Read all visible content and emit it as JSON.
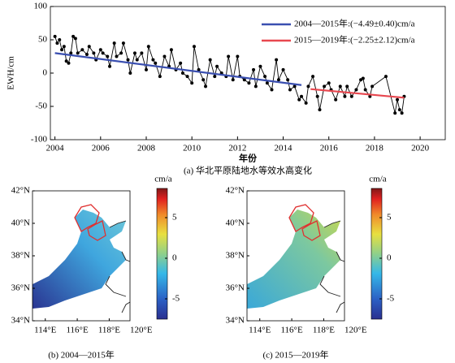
{
  "chart_data": {
    "type": "line",
    "ylabel": "EWH/cm",
    "xlabel": "年份",
    "caption": "(a) 华北平原陆地水等效水高变化",
    "xlim": [
      2003.8,
      2021.1
    ],
    "xticks": [
      2004,
      2006,
      2008,
      2010,
      2012,
      2014,
      2016,
      2018,
      2020
    ],
    "ylim": [
      -100,
      100
    ],
    "yticks": [
      -100,
      -50,
      0,
      50,
      100
    ],
    "legend": "upper right",
    "series": [
      {
        "color": "#000000",
        "markers": true,
        "x": [
          2004.0,
          2004.1,
          2004.2,
          2004.3,
          2004.4,
          2004.5,
          2004.6,
          2004.7,
          2004.8,
          2004.9,
          2005.0,
          2005.2,
          2005.4,
          2005.5,
          2005.7,
          2005.8,
          2006.0,
          2006.1,
          2006.3,
          2006.4,
          2006.6,
          2006.7,
          2006.9,
          2007.0,
          2007.2,
          2007.3,
          2007.5,
          2007.6,
          2007.8,
          2008.0,
          2008.1,
          2008.3,
          2008.4,
          2008.6,
          2008.8,
          2009.0,
          2009.1,
          2009.3,
          2009.5,
          2009.6,
          2009.8,
          2010.0,
          2010.1,
          2010.3,
          2010.5,
          2010.6,
          2010.8,
          2011.0,
          2011.1,
          2011.3,
          2011.5,
          2011.6,
          2011.8,
          2012.0,
          2012.1,
          2012.3,
          2012.5,
          2012.7,
          2012.8,
          2013.0,
          2013.2,
          2013.3,
          2013.5,
          2013.7,
          2013.8,
          2014.0,
          2014.2,
          2014.3,
          2014.5,
          2014.7,
          2014.8,
          2015.0,
          2015.1,
          2015.3,
          2015.5,
          2015.6,
          2015.8,
          2016.0,
          2016.1,
          2016.3,
          2016.5,
          2016.7,
          2016.8,
          2017.0,
          2017.2,
          2017.4,
          2017.5,
          2017.6,
          2017.8,
          2017.9,
          2018.5,
          2018.9,
          2019.0,
          2019.1,
          2019.2,
          2019.3
        ],
        "values": [
          55,
          45,
          50,
          35,
          40,
          18,
          15,
          30,
          55,
          52,
          30,
          35,
          28,
          40,
          30,
          20,
          35,
          30,
          25,
          10,
          45,
          25,
          30,
          45,
          20,
          0,
          30,
          20,
          30,
          5,
          40,
          20,
          15,
          -5,
          25,
          10,
          35,
          5,
          15,
          0,
          -5,
          -15,
          40,
          5,
          -10,
          -20,
          20,
          -5,
          10,
          0,
          -5,
          25,
          -10,
          25,
          -5,
          -10,
          -15,
          5,
          -20,
          10,
          -5,
          -15,
          -25,
          20,
          -10,
          5,
          -10,
          -25,
          -20,
          -40,
          -35,
          -45,
          -20,
          -5,
          -35,
          -55,
          -20,
          -15,
          -25,
          -40,
          -20,
          -35,
          -20,
          -35,
          -25,
          -10,
          -8,
          -25,
          -35,
          -20,
          -5,
          -60,
          -40,
          -55,
          -60,
          -35
        ]
      },
      {
        "name": "2004—2015年:(−4.49±0.40)cm/a",
        "color": "#3a4fb0",
        "x": [
          2004,
          2014.8
        ],
        "values": [
          30,
          -18
        ]
      },
      {
        "name": "2015—2019年:(−2.25±2.12)cm/a",
        "color": "#e8474f",
        "x": [
          2015.2,
          2019.3
        ],
        "values": [
          -24,
          -37
        ]
      }
    ]
  },
  "maps": [
    {
      "caption": "(b) 2004—2015年",
      "lonlim": [
        113.2,
        119.3
      ],
      "latlim": [
        34,
        42
      ],
      "xticks": [
        {
          "value": 114,
          "label": "114°E"
        },
        {
          "value": 116,
          "label": "116°E"
        },
        {
          "value": 118,
          "label": "118°E"
        },
        {
          "value": 120,
          "label": "120°E"
        }
      ],
      "yticks": [
        {
          "value": 34,
          "label": "34°N"
        },
        {
          "value": 36,
          "label": "36°N"
        },
        {
          "value": 38,
          "label": "38°N"
        },
        {
          "value": 40,
          "label": "40°N"
        },
        {
          "value": 42,
          "label": "42°N"
        }
      ],
      "colorbar": {
        "label": "cm/a",
        "clim": [
          -7.5,
          8.6
        ],
        "ticks": [
          -5,
          0,
          5
        ]
      }
    },
    {
      "caption": "(c) 2015—2019年",
      "lonlim": [
        113.2,
        119.3
      ],
      "latlim": [
        34,
        42
      ],
      "xticks": [
        {
          "value": 114,
          "label": "114°E"
        },
        {
          "value": 116,
          "label": "116°E"
        },
        {
          "value": 118,
          "label": "118°E"
        },
        {
          "value": 120,
          "label": "120°E"
        }
      ],
      "yticks": [
        {
          "value": 34,
          "label": "34°N"
        },
        {
          "value": 36,
          "label": "36°N"
        },
        {
          "value": 38,
          "label": "38°N"
        },
        {
          "value": 40,
          "label": "40°N"
        },
        {
          "value": 42,
          "label": "42°N"
        }
      ],
      "colorbar": {
        "label": "cm/a",
        "clim": [
          -7.5,
          8.6
        ],
        "ticks": [
          -5,
          0,
          5
        ]
      }
    }
  ]
}
